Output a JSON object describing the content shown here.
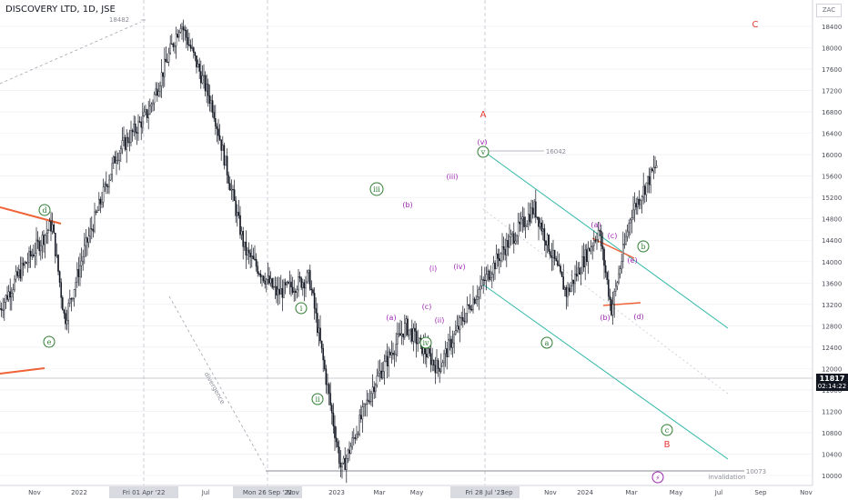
{
  "header": {
    "title": "DISCOVERY LTD, 1D, JSE"
  },
  "currency": "ZAC",
  "price_tag": {
    "price": "11817",
    "countdown": "02:14:22"
  },
  "colors": {
    "candle": "#131722",
    "trend_orange": "#f06237",
    "channel_teal": "#31b8a8",
    "wave_green": "#2e7d32",
    "wave_purple": "#9c27b0",
    "wave_red": "#e53935",
    "grid": "#e9ecf1"
  },
  "chart_data": {
    "type": "candlestick",
    "title": "DISCOVERY LTD, 1D, JSE",
    "ylim": [
      9800,
      18700
    ],
    "y_ticks": [
      10000,
      10400,
      10800,
      11200,
      11600,
      12000,
      12400,
      12800,
      13200,
      13600,
      14000,
      14400,
      14800,
      15200,
      15600,
      16000,
      16400,
      16800,
      17200,
      17600,
      18000,
      18400
    ],
    "x_ticks": [
      "Nov",
      "2022",
      "Ma",
      "Fri 01 Apr '22",
      "Jul",
      "Mon 26 Sep '22",
      "Nov",
      "2023",
      "Mar",
      "May",
      "Ju",
      "Fri 28 Jul '23",
      "Sep",
      "Nov",
      "2024",
      "Mar",
      "May",
      "Jul",
      "Sep",
      "Nov"
    ],
    "highlighted_dates": [
      "Fri 01 Apr '22",
      "Mon 26 Sep '22",
      "Fri 28 Jul '23"
    ],
    "price_path": [
      {
        "date": "Oct 2021",
        "price": 12700
      },
      {
        "date": "Nov 2021",
        "price": 13800
      },
      {
        "date": "Dec 2021",
        "price": 14700
      },
      {
        "date": "Dec 2021",
        "price": 12900
      },
      {
        "date": "Jan 2022",
        "price": 14200
      },
      {
        "date": "Feb 2022",
        "price": 16000
      },
      {
        "date": "Mar 2022",
        "price": 16800
      },
      {
        "date": "Apr 2022",
        "price": 18482
      },
      {
        "date": "May 2022",
        "price": 16900
      },
      {
        "date": "Jun 2022",
        "price": 14200
      },
      {
        "date": "Jul 2022",
        "price": 13400
      },
      {
        "date": "Aug 2022",
        "price": 13700
      },
      {
        "date": "Sep 2022",
        "price": 10073
      },
      {
        "date": "Oct 2022",
        "price": 11700
      },
      {
        "date": "Nov 2022",
        "price": 12800
      },
      {
        "date": "Dec 2022",
        "price": 12000
      },
      {
        "date": "Jan 2023",
        "price": 13200
      },
      {
        "date": "Feb 2023",
        "price": 14200
      },
      {
        "date": "Mar 2023",
        "price": 15000
      },
      {
        "date": "Apr 2023",
        "price": 13400
      },
      {
        "date": "May 2023",
        "price": 14600
      },
      {
        "date": "May 2023",
        "price": 13100
      },
      {
        "date": "Jun 2023",
        "price": 14900
      },
      {
        "date": "Jul 2023",
        "price": 16042
      },
      {
        "date": "Aug 2023",
        "price": 15000
      },
      {
        "date": "Sep 2023",
        "price": 14300
      },
      {
        "date": "Oct 2023",
        "price": 13300
      },
      {
        "date": "Nov 2023",
        "price": 12900
      },
      {
        "date": "Dec 2023",
        "price": 13500
      },
      {
        "date": "Jan 2024",
        "price": 14400
      },
      {
        "date": "Feb 2024",
        "price": 13700
      },
      {
        "date": "Mar 2024",
        "price": 13600
      },
      {
        "date": "Mar 2024",
        "price": 13900
      },
      {
        "date": "Apr 2024",
        "price": 11600
      },
      {
        "date": "Apr 2024",
        "price": 11817
      }
    ],
    "current_price": 11817,
    "annotations": [
      {
        "text": "18482",
        "kind": "level"
      },
      {
        "text": "16042",
        "kind": "level"
      },
      {
        "text": "10073",
        "kind": "level"
      },
      {
        "text": "invalidation",
        "kind": "note"
      },
      {
        "text": "divergence",
        "kind": "note"
      }
    ],
    "wave_labels": [
      {
        "text": "d",
        "style": "green-circle"
      },
      {
        "text": "e",
        "style": "green-circle"
      },
      {
        "text": "i",
        "style": "green-circle"
      },
      {
        "text": "ii",
        "style": "green-circle"
      },
      {
        "text": "iii",
        "style": "green-circle"
      },
      {
        "text": "iv",
        "style": "green-circle"
      },
      {
        "text": "v",
        "style": "green-circle"
      },
      {
        "text": "a",
        "style": "green-circle"
      },
      {
        "text": "b",
        "style": "green-circle"
      },
      {
        "text": "c",
        "style": "green-circle"
      },
      {
        "text": "(a)",
        "style": "purple"
      },
      {
        "text": "(b)",
        "style": "purple"
      },
      {
        "text": "(c)",
        "style": "purple"
      },
      {
        "text": "(i)",
        "style": "purple"
      },
      {
        "text": "(ii)",
        "style": "purple"
      },
      {
        "text": "(iii)",
        "style": "purple"
      },
      {
        "text": "(iv)",
        "style": "purple"
      },
      {
        "text": "(v)",
        "style": "purple"
      },
      {
        "text": "(a)",
        "style": "purple"
      },
      {
        "text": "(b)",
        "style": "purple"
      },
      {
        "text": "(c)",
        "style": "purple"
      },
      {
        "text": "(d)",
        "style": "purple"
      },
      {
        "text": "(e)",
        "style": "purple"
      },
      {
        "text": "A",
        "style": "red"
      },
      {
        "text": "B",
        "style": "red"
      },
      {
        "text": "C",
        "style": "red"
      },
      {
        "text": "⚡",
        "style": "purple-circle"
      }
    ]
  }
}
